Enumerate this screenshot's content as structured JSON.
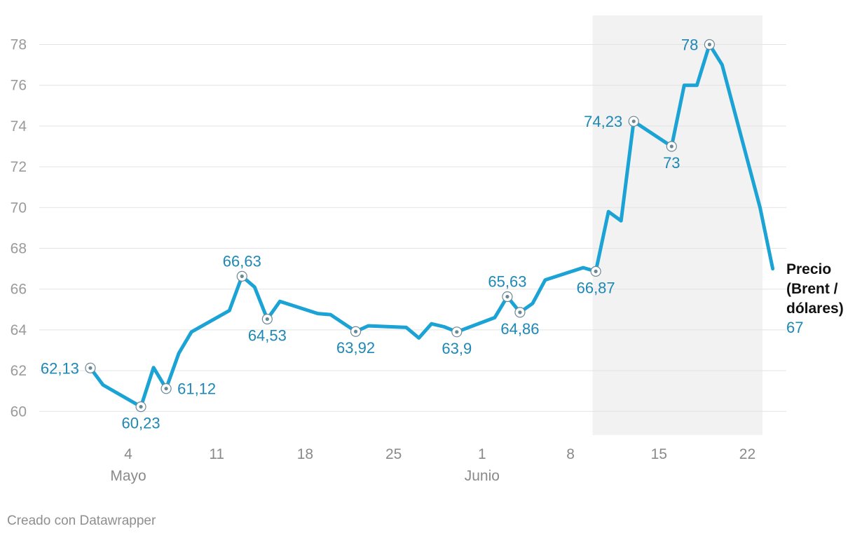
{
  "chart_data": {
    "type": "line",
    "title": "",
    "xlabel": "",
    "ylabel": "",
    "ylim": [
      59,
      79.5
    ],
    "yticks": [
      "60",
      "62",
      "64",
      "66",
      "68",
      "70",
      "72",
      "74",
      "76",
      "78"
    ],
    "xticks": [
      {
        "day": 4,
        "label": "4"
      },
      {
        "day": 11,
        "label": "11"
      },
      {
        "day": 18,
        "label": "18"
      },
      {
        "day": 25,
        "label": "25"
      },
      {
        "day": 32,
        "label": "1"
      },
      {
        "day": 39,
        "label": "8"
      },
      {
        "day": 46,
        "label": "15"
      },
      {
        "day": 53,
        "label": "22"
      }
    ],
    "months": [
      {
        "day": 4,
        "label": "Mayo"
      },
      {
        "day": 32,
        "label": "Junio"
      }
    ],
    "highlight_range": [
      40.75,
      54.2
    ],
    "series": [
      {
        "name": "Precio (Brent / dólares)",
        "name_lines": [
          "Precio",
          "(Brent /",
          "dólares)"
        ],
        "color": "#1aa3d4",
        "end_value_label": "67",
        "points": [
          {
            "day": 1,
            "value": 62.13,
            "label": "62,13",
            "pos": "left"
          },
          {
            "day": 2,
            "value": 61.3
          },
          {
            "day": 5,
            "value": 60.23,
            "label": "60,23",
            "pos": "below"
          },
          {
            "day": 6,
            "value": 62.15
          },
          {
            "day": 7,
            "value": 61.12,
            "label": "61,12",
            "pos": "right"
          },
          {
            "day": 8,
            "value": 62.85
          },
          {
            "day": 9,
            "value": 63.9
          },
          {
            "day": 12,
            "value": 64.95
          },
          {
            "day": 13,
            "value": 66.63,
            "label": "66,63",
            "pos": "above"
          },
          {
            "day": 14,
            "value": 66.1
          },
          {
            "day": 15,
            "value": 64.53,
            "label": "64,53",
            "pos": "below"
          },
          {
            "day": 16,
            "value": 65.4
          },
          {
            "day": 19,
            "value": 64.8
          },
          {
            "day": 20,
            "value": 64.75
          },
          {
            "day": 22,
            "value": 63.92,
            "label": "63,92",
            "pos": "below"
          },
          {
            "day": 23,
            "value": 64.2
          },
          {
            "day": 26,
            "value": 64.12
          },
          {
            "day": 27,
            "value": 63.6
          },
          {
            "day": 28,
            "value": 64.3
          },
          {
            "day": 29,
            "value": 64.15
          },
          {
            "day": 30,
            "value": 63.9,
            "label": "63,9",
            "pos": "below"
          },
          {
            "day": 33,
            "value": 64.6
          },
          {
            "day": 34,
            "value": 65.63,
            "label": "65,63",
            "pos": "above"
          },
          {
            "day": 35,
            "value": 64.86,
            "label": "64,86",
            "pos": "below"
          },
          {
            "day": 36,
            "value": 65.3
          },
          {
            "day": 37,
            "value": 66.45
          },
          {
            "day": 40,
            "value": 67.05
          },
          {
            "day": 41,
            "value": 66.87,
            "label": "66,87",
            "pos": "below"
          },
          {
            "day": 42,
            "value": 69.8
          },
          {
            "day": 43,
            "value": 69.35
          },
          {
            "day": 44,
            "value": 74.23,
            "label": "74,23",
            "pos": "left"
          },
          {
            "day": 47,
            "value": 73,
            "label": "73",
            "pos": "below"
          },
          {
            "day": 48,
            "value": 76
          },
          {
            "day": 49,
            "value": 76
          },
          {
            "day": 50,
            "value": 78,
            "label": "78",
            "pos": "left"
          },
          {
            "day": 51,
            "value": 77
          },
          {
            "day": 54,
            "value": 70
          },
          {
            "day": 55,
            "value": 67
          }
        ]
      }
    ]
  },
  "footer": {
    "credit": "Creado con Datawrapper"
  }
}
